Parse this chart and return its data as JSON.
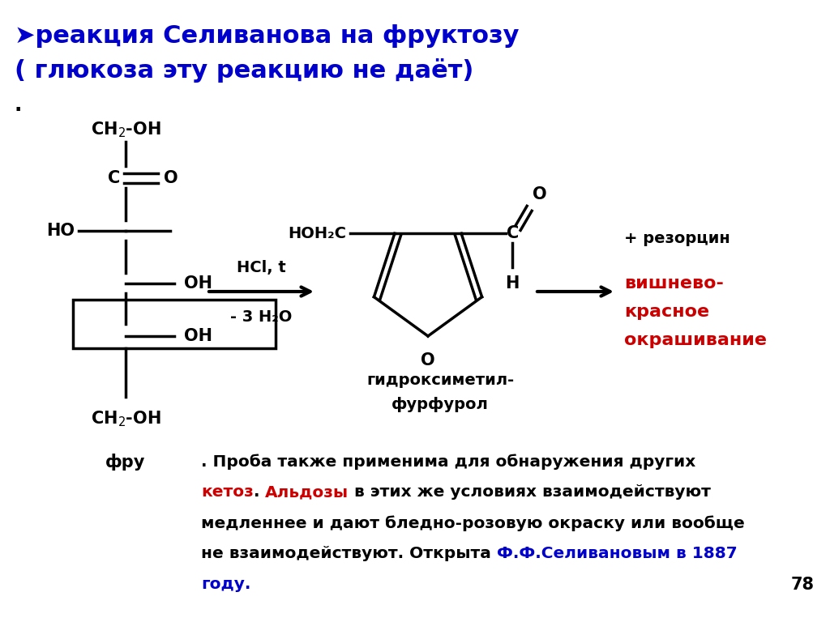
{
  "bg_color": "#ffffff",
  "title_line1": "➤реакция Селиванова на фруктозу",
  "title_line2": "( глюкоза эту реакцию не даёт)",
  "title_color": "#0000cc",
  "dot_text": ".",
  "fructose_label": "фру",
  "arrow_label_top": "HCl, t",
  "arrow_label_bot": "- 3 H₂O",
  "product_label_1": "гидроксиметил-",
  "product_label_2": "фурфурол",
  "resorcinol_label": "+ резорцин",
  "result_line1": "вишнево-",
  "result_line2": "красное",
  "result_line3": "окрашивание",
  "result_color": "#cc0000",
  "page_number": "78"
}
